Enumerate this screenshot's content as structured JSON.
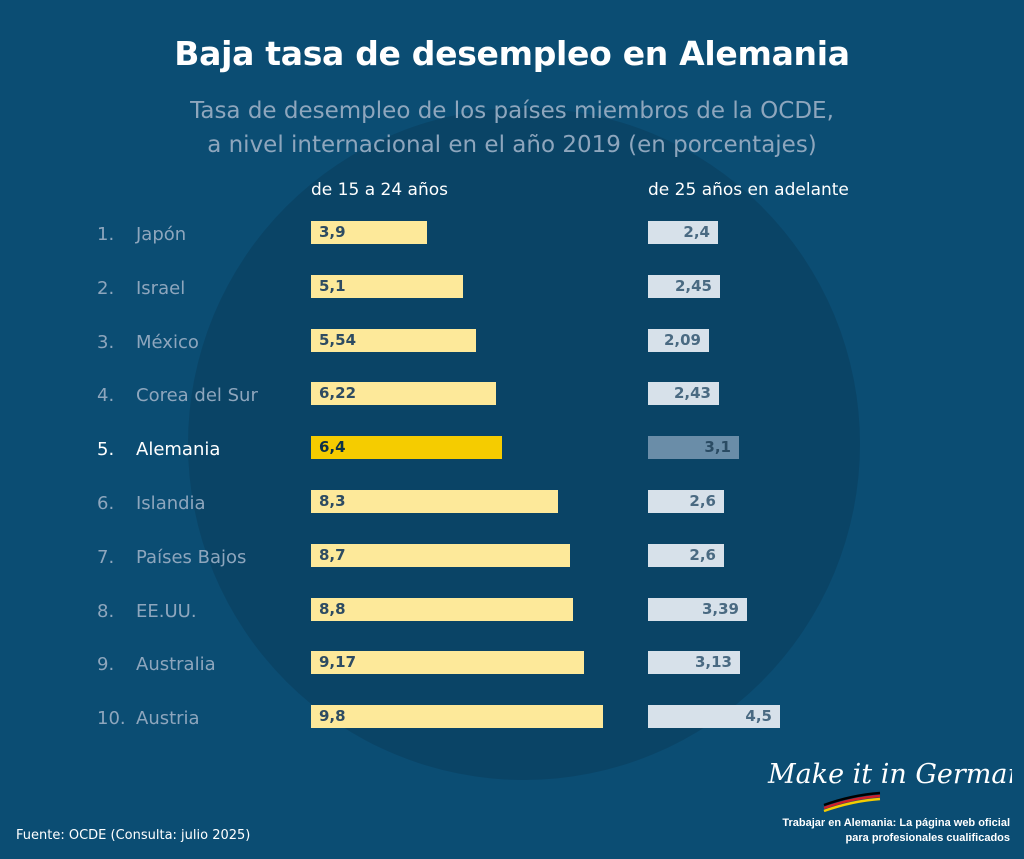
{
  "header": {
    "title": "Baja tasa de desempleo en Alemania",
    "subtitle_line1": "Tasa de desempleo de los países miembros de la OCDE,",
    "subtitle_line2": "a nivel internacional en el año 2019 (en porcentajes)"
  },
  "chart_data": {
    "type": "bar",
    "orientation": "horizontal",
    "title": "Baja tasa de desempleo en Alemania",
    "subtitle": "Tasa de desempleo de los países miembros de la OCDE, a nivel internacional en el año 2019 (en porcentajes)",
    "ranks": [
      "1.",
      "2.",
      "3.",
      "4.",
      "5.",
      "6.",
      "7.",
      "8.",
      "9.",
      "10."
    ],
    "categories": [
      "Japón",
      "Israel",
      "México",
      "Corea del Sur",
      "Alemania",
      "Islandia",
      "Países Bajos",
      "EE.UU.",
      "Australia",
      "Austria"
    ],
    "highlight": "Alemania",
    "series": [
      {
        "name": "de 15 a 24 años",
        "values": [
          3.9,
          5.1,
          5.54,
          6.22,
          6.4,
          8.3,
          8.7,
          8.8,
          9.17,
          9.8
        ],
        "labels": [
          "3,9",
          "5,1",
          "5,54",
          "6,22",
          "6,4",
          "8,3",
          "8,7",
          "8,8",
          "9,17",
          "9,8"
        ],
        "color": "#fde99a",
        "highlight_color": "#f5cc00"
      },
      {
        "name": "de 25 años en adelante",
        "values": [
          2.4,
          2.45,
          2.09,
          2.43,
          3.1,
          2.6,
          2.6,
          3.39,
          3.13,
          4.5
        ],
        "labels": [
          "2,4",
          "2,45",
          "2,09",
          "2,43",
          "3,1",
          "2,6",
          "2,6",
          "3,39",
          "3,13",
          "4,5"
        ],
        "color": "#d7e1ea",
        "highlight_color": "#6a8da8"
      }
    ]
  },
  "brand": {
    "logo_text": "Make it in Germany",
    "tagline_line1": "Trabajar en Alemania: La página web oficial",
    "tagline_line2": "para profesionales cualificados"
  },
  "footer": {
    "source": "Fuente: OCDE (Consulta: julio 2025)"
  },
  "colors": {
    "background": "#0b4d73",
    "circle": "#0a4466",
    "muted_text": "#8ea6bd"
  }
}
